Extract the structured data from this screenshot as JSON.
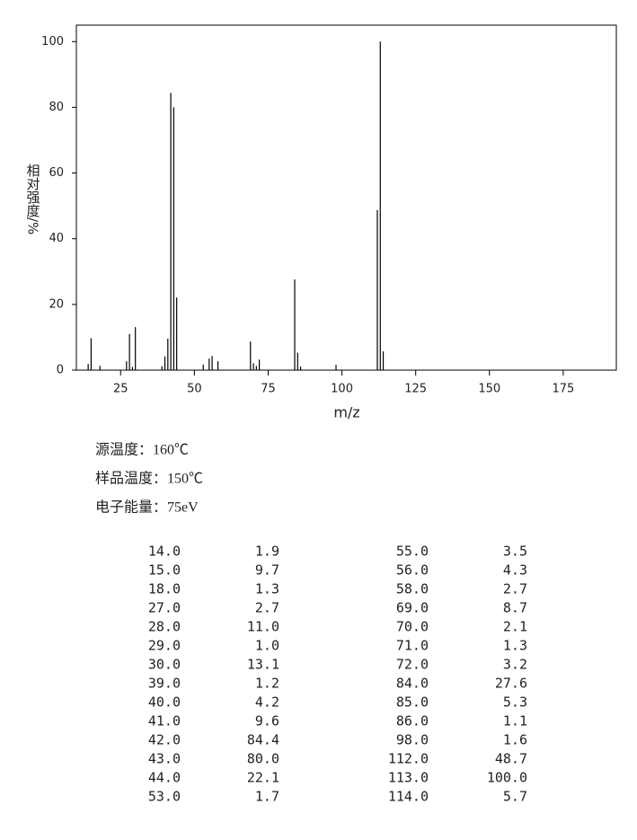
{
  "chart_data": {
    "type": "spectrum",
    "x_label": "m/z",
    "y_label": "相对强度/%",
    "x": [
      14,
      15,
      18,
      27,
      28,
      29,
      30,
      39,
      40,
      41,
      42,
      43,
      44,
      53,
      55,
      56,
      58,
      69,
      70,
      71,
      72,
      84,
      85,
      86,
      98,
      112,
      113,
      114
    ],
    "x_labels": [
      "14.0",
      "15.0",
      "18.0",
      "27.0",
      "28.0",
      "29.0",
      "30.0",
      "39.0",
      "40.0",
      "41.0",
      "42.0",
      "43.0",
      "44.0",
      "53.0",
      "55.0",
      "56.0",
      "58.0",
      "69.0",
      "70.0",
      "71.0",
      "72.0",
      "84.0",
      "85.0",
      "86.0",
      "98.0",
      "112.0",
      "113.0",
      "114.0"
    ],
    "values": [
      1.9,
      9.7,
      1.3,
      2.7,
      11.0,
      1.0,
      13.1,
      1.2,
      4.2,
      9.6,
      84.4,
      80.0,
      22.1,
      1.7,
      3.5,
      4.3,
      2.7,
      8.7,
      2.1,
      1.3,
      3.2,
      27.6,
      5.3,
      1.1,
      1.6,
      48.7,
      100.0,
      5.7
    ],
    "value_labels": [
      "1.9",
      "9.7",
      "1.3",
      "2.7",
      "11.0",
      "1.0",
      "13.1",
      "1.2",
      "4.2",
      "9.6",
      "84.4",
      "80.0",
      "22.1",
      "1.7",
      "3.5",
      "4.3",
      "2.7",
      "8.7",
      "2.1",
      "1.3",
      "3.2",
      "27.6",
      "5.3",
      "1.1",
      "1.6",
      "48.7",
      "100.0",
      "5.7"
    ],
    "color": "#000000",
    "xlim": [
      10,
      193
    ],
    "xticks": [
      25,
      50,
      75,
      100,
      125,
      150,
      175
    ],
    "ylim": [
      0,
      105
    ],
    "yticks": [
      0,
      20,
      40,
      60,
      80,
      100
    ]
  },
  "info": [
    "源温度：160℃",
    "样品温度：150℃",
    "电子能量：75eV"
  ]
}
